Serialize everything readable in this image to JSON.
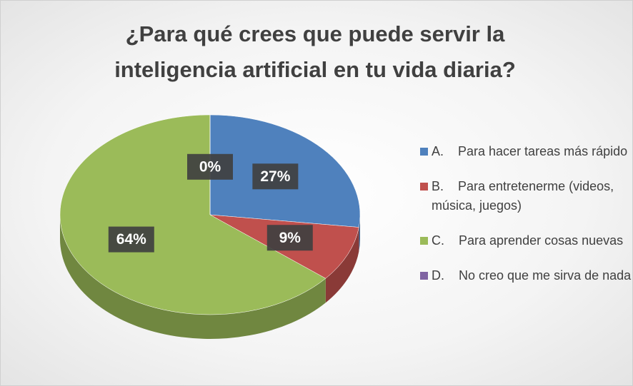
{
  "chart_data": {
    "type": "pie",
    "title": "¿Para qué crees que puede servir la inteligencia artificial en tu vida diaria?",
    "categories": [
      "A.    Para hacer tareas más rápido",
      "B.    Para entretenerme (videos, música, juegos)",
      "C.    Para aprender cosas nuevas",
      "D.    No creo que me sirva de nada"
    ],
    "values": [
      27,
      9,
      64,
      0
    ],
    "value_labels": [
      "27%",
      "9%",
      "64%",
      "0%"
    ],
    "colors": [
      "#4f81bd",
      "#c0504d",
      "#9bbb59",
      "#8064a2"
    ],
    "legend": "right"
  }
}
